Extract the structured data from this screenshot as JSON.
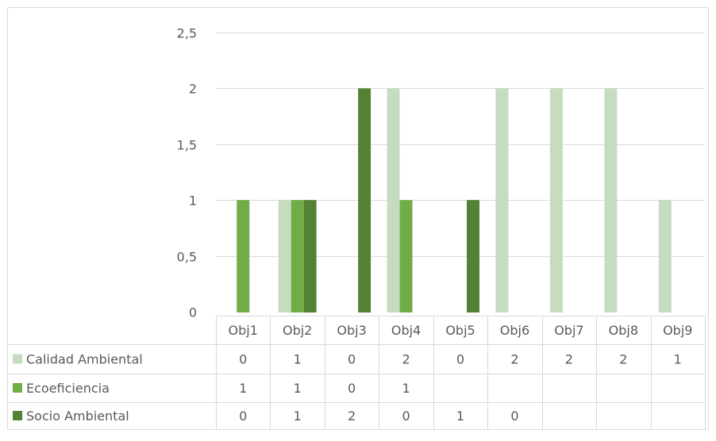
{
  "chart_data": {
    "type": "bar",
    "title": "",
    "xlabel": "",
    "ylabel": "",
    "ylim": [
      0,
      2.5
    ],
    "y_ticks": [
      "0",
      "0,5",
      "1",
      "1,5",
      "2",
      "2,5"
    ],
    "y_tick_values": [
      0,
      0.5,
      1,
      1.5,
      2,
      2.5
    ],
    "grid": true,
    "legend": "data-table-below",
    "categories": [
      "Obj1",
      "Obj2",
      "Obj3",
      "Obj4",
      "Obj5",
      "Obj6",
      "Obj7",
      "Obj8",
      "Obj9"
    ],
    "series": [
      {
        "name": "Calidad Ambiental",
        "color": "#c5dcc0",
        "values": [
          0,
          1,
          0,
          2,
          0,
          2,
          2,
          2,
          1
        ],
        "table_values": [
          "0",
          "1",
          "0",
          "2",
          "0",
          "2",
          "2",
          "2",
          "1"
        ]
      },
      {
        "name": "Ecoeficiencia",
        "color": "#70ad47",
        "values": [
          1,
          1,
          0,
          1,
          null,
          null,
          null,
          null,
          null
        ],
        "table_values": [
          "1",
          "1",
          "0",
          "1",
          "",
          "",
          "",
          "",
          ""
        ]
      },
      {
        "name": "Socio Ambiental",
        "color": "#548235",
        "values": [
          0,
          1,
          2,
          0,
          1,
          0,
          null,
          null,
          null
        ],
        "table_values": [
          "0",
          "1",
          "2",
          "0",
          "1",
          "0",
          "",
          "",
          ""
        ]
      }
    ]
  }
}
